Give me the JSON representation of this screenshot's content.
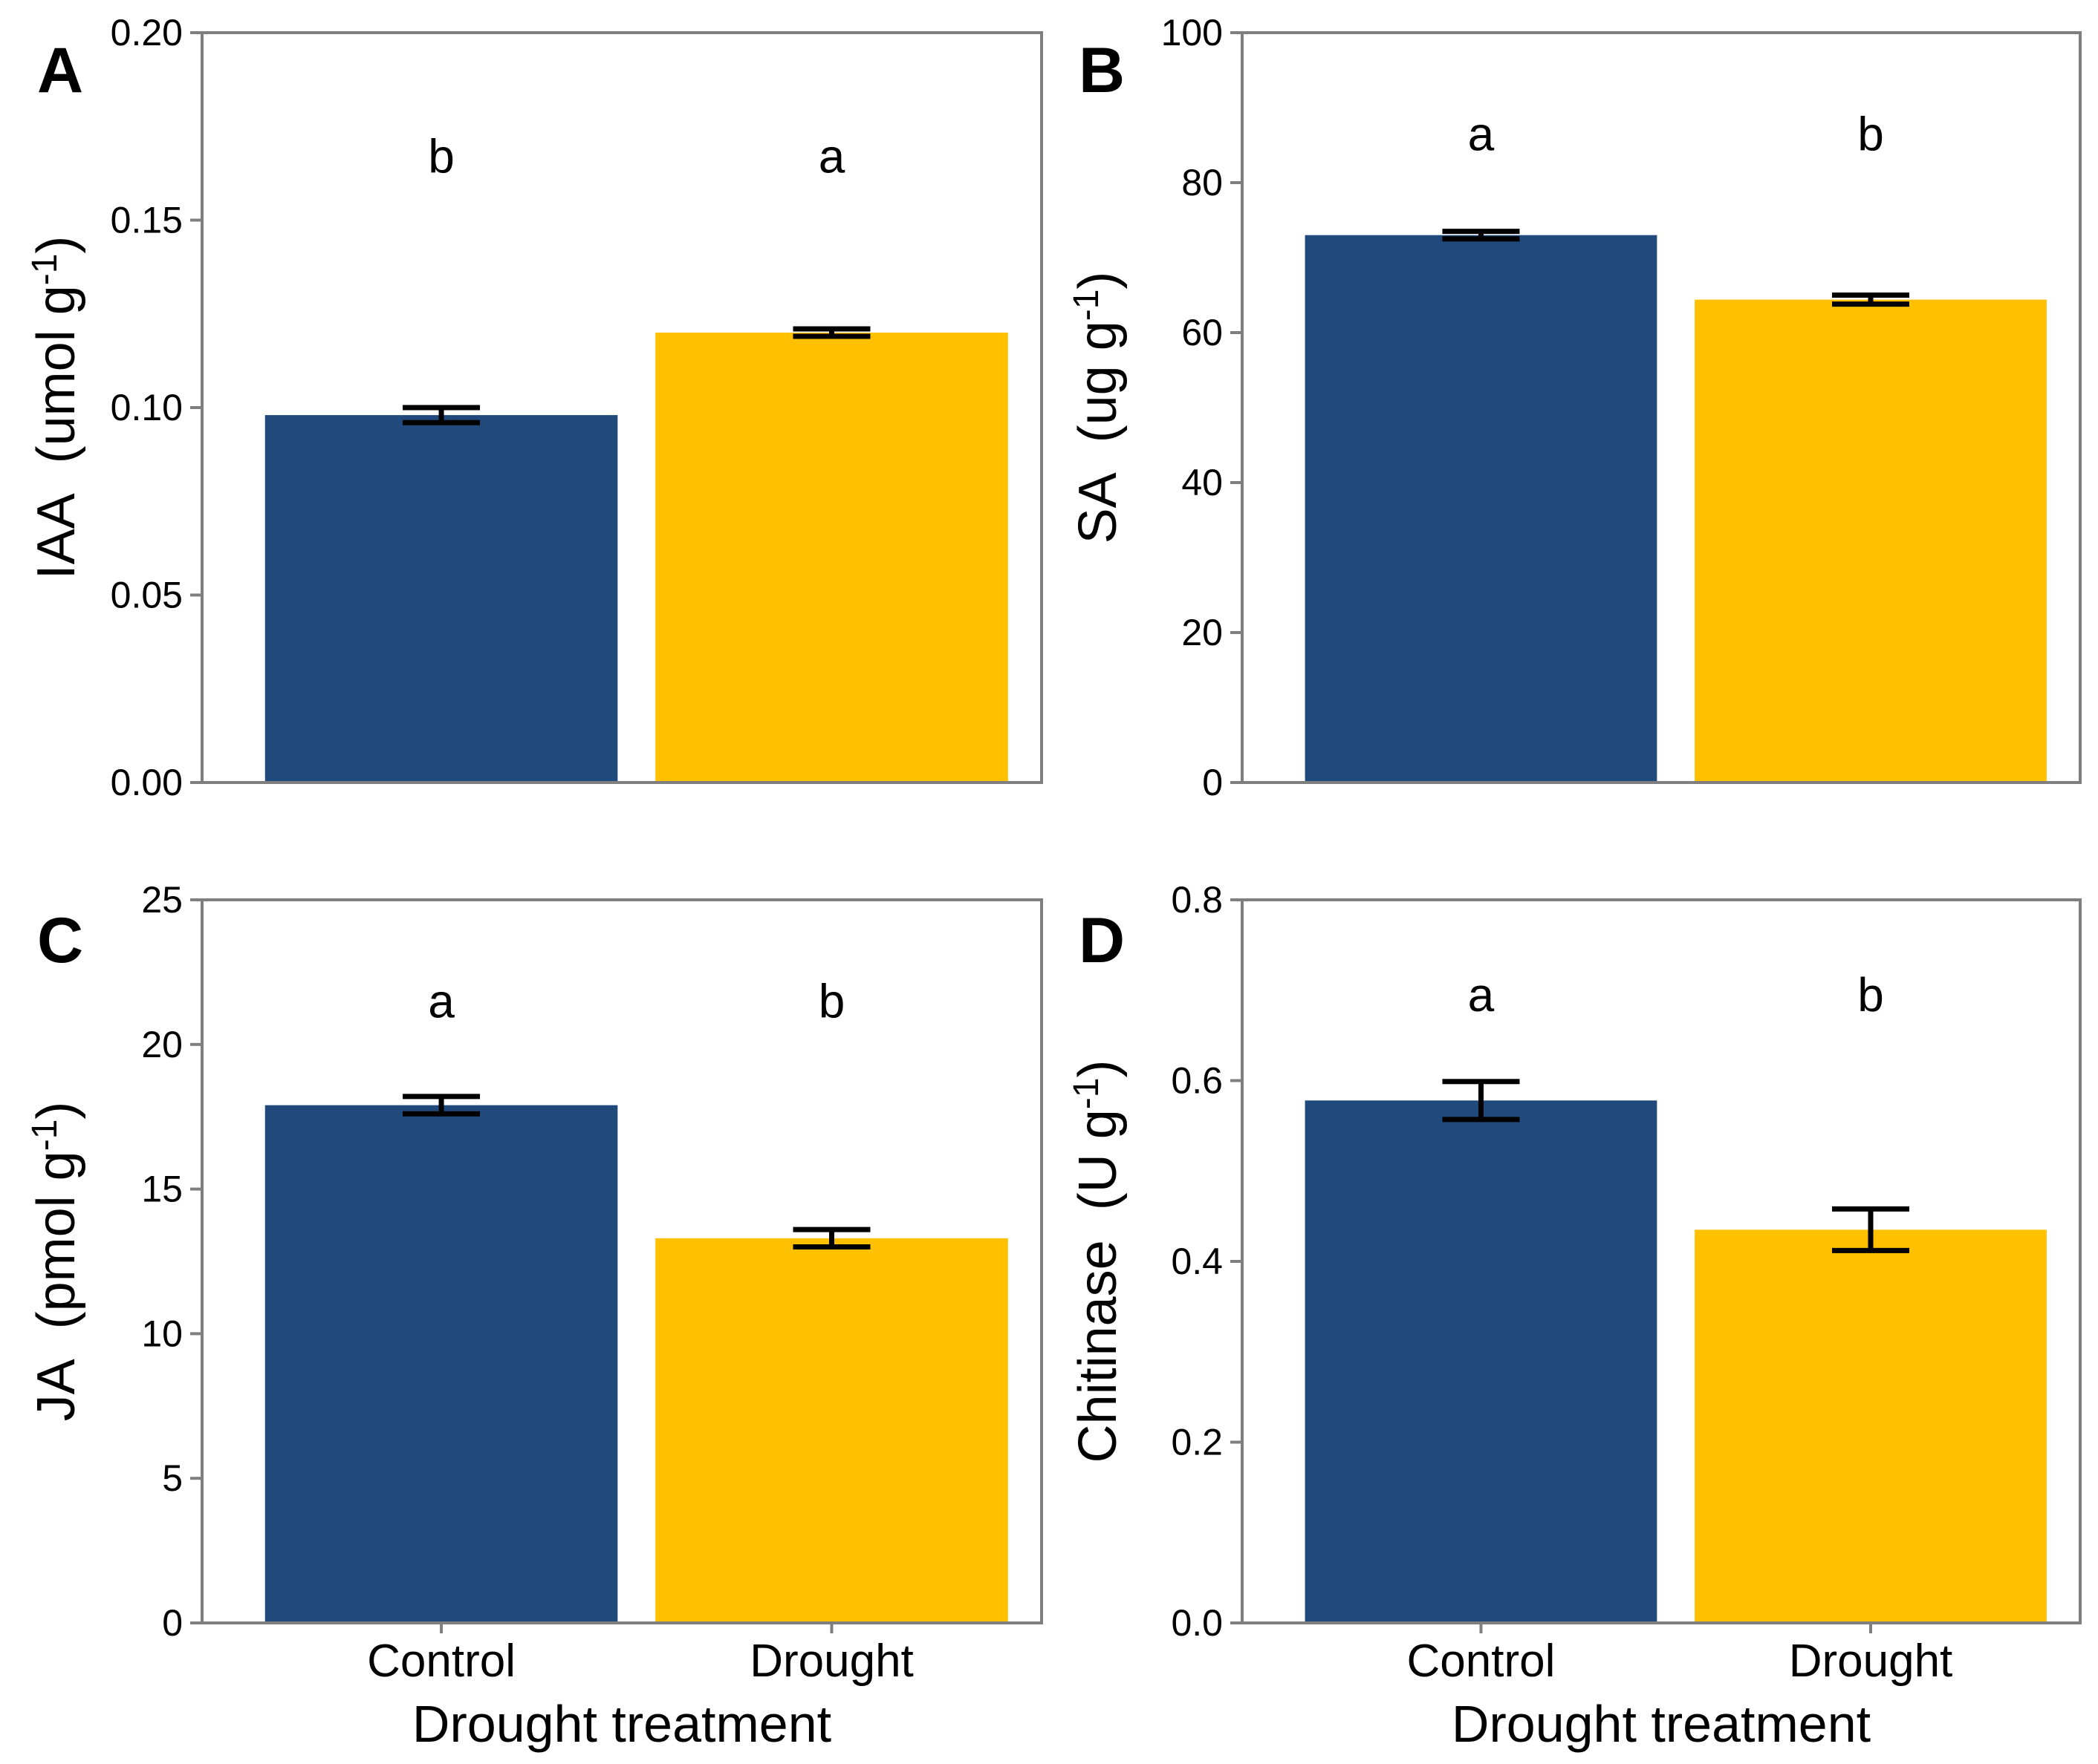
{
  "figure": {
    "description": "Four-panel bar chart of phytohormone and enzyme levels under control and drought treatment",
    "background": "#ffffff"
  },
  "colors": {
    "control_bar": "#204A7C",
    "drought_bar": "#FFC000",
    "axis": "#7f7f7f",
    "text": "#000000",
    "error_bar": "#000000"
  },
  "categories": [
    "Control",
    "Drought"
  ],
  "x_axis_title": "Drought treatment",
  "chart_data": {
    "type": "bar",
    "layout": "2x2 panels, shared x categories, error bars, significance letters",
    "legend": "none",
    "grid": "off",
    "panels": [
      {
        "id": "A",
        "panel_label": "A",
        "measure": "IAA",
        "unit": "umol g",
        "unit_exponent": "-1",
        "ylim": [
          0,
          0.2
        ],
        "ytick_values": [
          0,
          0.05,
          0.1,
          0.15,
          0.2
        ],
        "ytick_labels": [
          "0.00",
          "0.05",
          "0.10",
          "0.15",
          "0.20"
        ],
        "categories": [
          "Control",
          "Drought"
        ],
        "values": [
          0.098,
          0.12
        ],
        "errors": [
          0.002,
          0.001
        ],
        "sig_letters": [
          "b",
          "a"
        ],
        "sig_letter_y": 0.167,
        "show_x_axis": false
      },
      {
        "id": "B",
        "panel_label": "B",
        "measure": "SA",
        "unit": "ug g",
        "unit_exponent": "-1",
        "ylim": [
          0,
          100
        ],
        "ytick_values": [
          0,
          20,
          40,
          60,
          80,
          100
        ],
        "ytick_labels": [
          "0",
          "20",
          "40",
          "60",
          "80",
          "100"
        ],
        "categories": [
          "Control",
          "Drought"
        ],
        "values": [
          73,
          64.4
        ],
        "errors": [
          0.5,
          0.6
        ],
        "sig_letters": [
          "a",
          "b"
        ],
        "sig_letter_y": 86.5,
        "show_x_axis": false
      },
      {
        "id": "C",
        "panel_label": "C",
        "measure": "JA",
        "unit": "pmol g",
        "unit_exponent": "-1",
        "ylim": [
          0,
          25
        ],
        "ytick_values": [
          0,
          5,
          10,
          15,
          20,
          25
        ],
        "ytick_labels": [
          "0",
          "5",
          "10",
          "15",
          "20",
          "25"
        ],
        "categories": [
          "Control",
          "Drought"
        ],
        "values": [
          17.9,
          13.3
        ],
        "errors": [
          0.3,
          0.3
        ],
        "sig_letters": [
          "a",
          "b"
        ],
        "sig_letter_y": 21.5,
        "show_x_axis": true
      },
      {
        "id": "D",
        "panel_label": "D",
        "measure": "Chitinase",
        "unit": "U g",
        "unit_exponent": "-1",
        "ylim": [
          0,
          0.8
        ],
        "ytick_values": [
          0,
          0.2,
          0.4,
          0.6,
          0.8
        ],
        "ytick_labels": [
          "0.0",
          "0.2",
          "0.4",
          "0.6",
          "0.8"
        ],
        "categories": [
          "Control",
          "Drought"
        ],
        "values": [
          0.578,
          0.435
        ],
        "errors": [
          0.021,
          0.023
        ],
        "sig_letters": [
          "a",
          "b"
        ],
        "sig_letter_y": 0.695,
        "show_x_axis": true
      }
    ]
  }
}
